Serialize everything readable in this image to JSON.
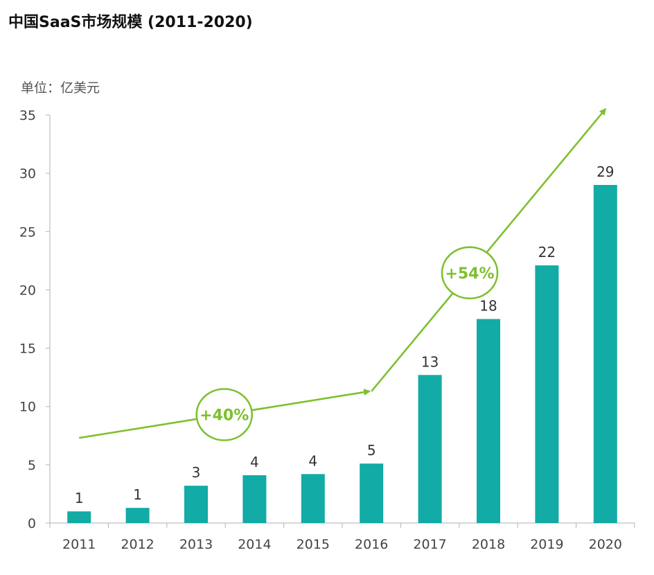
{
  "chart_data": {
    "type": "bar",
    "title": "中国SaaS市场规模 (2011-2020)",
    "unit_label": "单位：亿美元",
    "categories": [
      "2011",
      "2012",
      "2013",
      "2014",
      "2015",
      "2016",
      "2017",
      "2018",
      "2019",
      "2020"
    ],
    "values": [
      1.0,
      1.3,
      3.2,
      4.1,
      4.2,
      5.1,
      12.7,
      17.5,
      22.1,
      29.0
    ],
    "data_labels": [
      "1",
      "1",
      "3",
      "4",
      "4",
      "5",
      "13",
      "18",
      "22",
      "29"
    ],
    "ylim": [
      0,
      35
    ],
    "yticks": [
      0,
      5,
      10,
      15,
      20,
      25,
      30,
      35
    ],
    "xlabel": "",
    "ylabel": "",
    "grid": false,
    "bar_color": "#12ABA5",
    "annotations": [
      {
        "label": "+40%",
        "from_category": "2011",
        "to_category": "2016",
        "from_value": 7.3,
        "to_value": 11.3,
        "color": "#7DC02E"
      },
      {
        "label": "+54%",
        "from_category": "2016",
        "to_category": "2020",
        "from_value": 11.3,
        "to_value": 35.5,
        "color": "#7DC02E"
      }
    ]
  }
}
